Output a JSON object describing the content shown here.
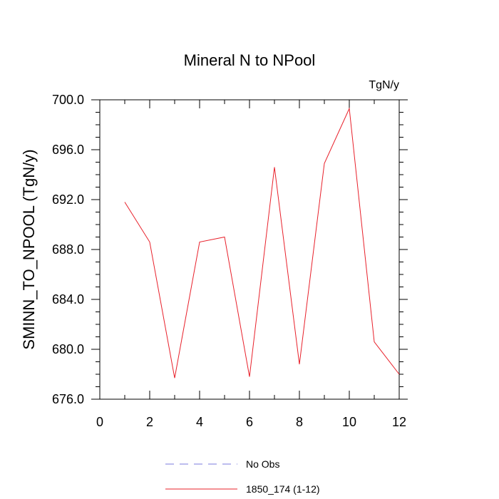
{
  "chart_data": {
    "type": "line",
    "title": "Mineral N to NPool",
    "units_label": "TgN/y",
    "ylabel": "SMINN_TO_NPOOL  (TgN/y)",
    "xlabel": "",
    "xlim": [
      0,
      12
    ],
    "ylim": [
      676,
      700
    ],
    "x_ticks": [
      0,
      2,
      4,
      6,
      8,
      10,
      12
    ],
    "x_tick_labels": [
      "0",
      "2",
      "4",
      "6",
      "8",
      "10",
      "12"
    ],
    "y_ticks": [
      676,
      680,
      684,
      688,
      692,
      696,
      700
    ],
    "y_tick_labels": [
      "676.0",
      "680.0",
      "684.0",
      "688.0",
      "692.0",
      "696.0",
      "700.0"
    ],
    "grid": false,
    "legend_position": "bottom",
    "series": [
      {
        "name": "No Obs",
        "color": "#7b7bdc",
        "dash": "dashed",
        "x": [],
        "y": []
      },
      {
        "name": "1850_174 (1-12)",
        "color": "#e8202a",
        "dash": "solid",
        "x": [
          1,
          2,
          3,
          4,
          5,
          6,
          7,
          8,
          9,
          10,
          11,
          12
        ],
        "y": [
          691.8,
          688.6,
          677.7,
          688.6,
          689.0,
          677.8,
          694.6,
          678.8,
          694.9,
          699.3,
          680.6,
          678.0
        ]
      }
    ]
  }
}
